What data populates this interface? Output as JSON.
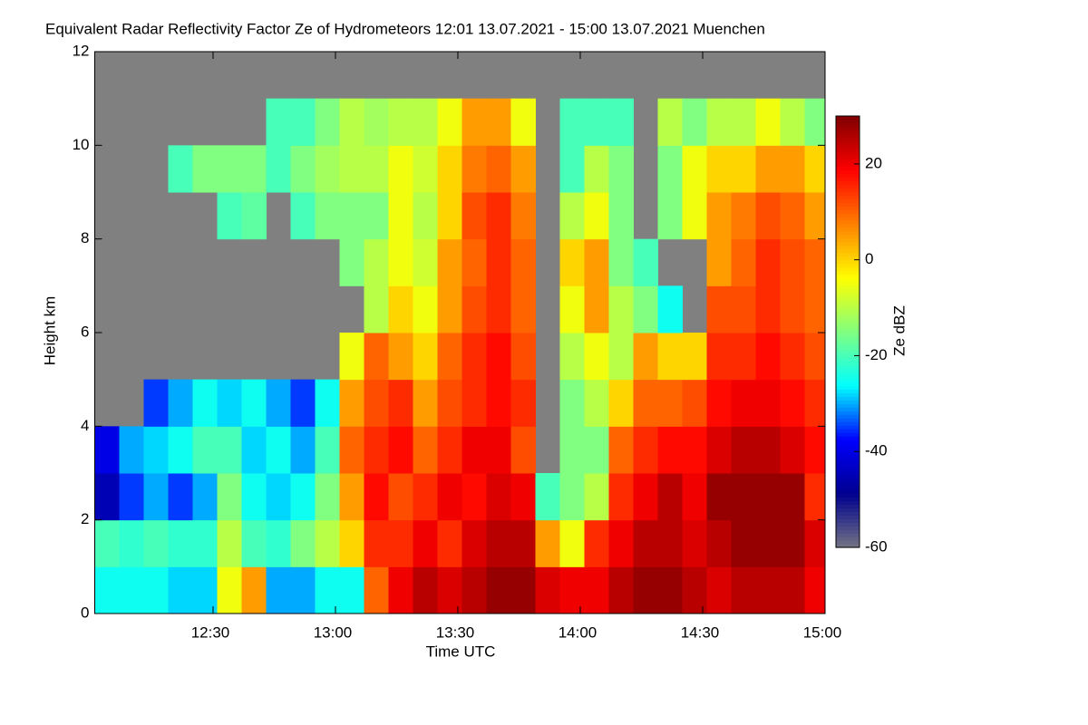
{
  "chart_data": {
    "type": "heatmap",
    "title": "Equivalent Radar Reflectivity Factor Ze of Hydrometeors   12:01 13.07.2021 - 15:00 13.07.2021 Muenchen",
    "x_label": "Time UTC",
    "y_label": "Height km",
    "colorbar_label": "Ze dBZ",
    "xlim": [
      721,
      900
    ],
    "xticks": [
      {
        "value": 750,
        "label": "12:30"
      },
      {
        "value": 780,
        "label": "13:00"
      },
      {
        "value": 810,
        "label": "13:30"
      },
      {
        "value": 840,
        "label": "14:00"
      },
      {
        "value": 870,
        "label": "14:30"
      },
      {
        "value": 900,
        "label": "15:00"
      }
    ],
    "ylim": [
      0,
      12
    ],
    "yticks": [
      0,
      2,
      4,
      6,
      8,
      10,
      12
    ],
    "zlim": [
      -60,
      30
    ],
    "zticks": [
      -60,
      -40,
      -20,
      0,
      20
    ],
    "colormap": [
      "#747484",
      "#00008f",
      "#0000ff",
      "#00ffff",
      "#80ff80",
      "#ffff00",
      "#ff8000",
      "#ff0000",
      "#800000"
    ],
    "missing_color": "#808080",
    "x": [
      724,
      730,
      736,
      742,
      748,
      754,
      760,
      766,
      772,
      778,
      784,
      790,
      796,
      802,
      808,
      814,
      820,
      826,
      832,
      838,
      844,
      850,
      856,
      862,
      868,
      874,
      880,
      886,
      892,
      898
    ],
    "y": [
      0.5,
      1.5,
      2.5,
      3.5,
      4.5,
      5.5,
      6.5,
      7.5,
      8.5,
      9.5,
      10.5,
      11.5
    ],
    "z": [
      [
        -25,
        -20,
        -45,
        -40,
        null,
        null,
        null,
        null,
        null,
        null,
        null,
        null
      ],
      [
        -25,
        -22,
        -35,
        -30,
        null,
        null,
        null,
        null,
        null,
        null,
        null,
        null
      ],
      [
        -25,
        -20,
        -30,
        -28,
        -35,
        null,
        null,
        null,
        null,
        null,
        null,
        null
      ],
      [
        -28,
        -22,
        -35,
        -25,
        -30,
        null,
        null,
        null,
        null,
        -20,
        null,
        null
      ],
      [
        -28,
        -22,
        -30,
        -20,
        -25,
        null,
        null,
        null,
        null,
        -15,
        null,
        null
      ],
      [
        -5,
        -10,
        -15,
        -20,
        -28,
        null,
        null,
        null,
        -20,
        -15,
        null,
        null
      ],
      [
        5,
        -20,
        -25,
        -28,
        -25,
        null,
        null,
        null,
        -18,
        -15,
        null,
        null
      ],
      [
        -30,
        -22,
        -28,
        -25,
        -30,
        null,
        null,
        null,
        null,
        -20,
        -20,
        null
      ],
      [
        -30,
        -15,
        -25,
        -30,
        -35,
        null,
        null,
        null,
        -20,
        -15,
        -20,
        null
      ],
      [
        -25,
        -10,
        -15,
        -20,
        -25,
        null,
        null,
        null,
        -15,
        -12,
        -15,
        null
      ],
      [
        -25,
        0,
        5,
        10,
        5,
        -5,
        null,
        -15,
        -15,
        -10,
        -10,
        null
      ],
      [
        10,
        15,
        18,
        15,
        12,
        10,
        -10,
        -10,
        -15,
        -10,
        -12,
        null
      ],
      [
        20,
        15,
        12,
        18,
        15,
        5,
        0,
        -5,
        -5,
        -5,
        -10,
        null
      ],
      [
        25,
        20,
        15,
        10,
        5,
        0,
        -5,
        -8,
        -10,
        -8,
        -10,
        null
      ],
      [
        22,
        15,
        20,
        15,
        12,
        10,
        5,
        5,
        0,
        0,
        -5,
        null
      ],
      [
        25,
        22,
        18,
        20,
        15,
        15,
        12,
        10,
        12,
        8,
        5,
        null
      ],
      [
        28,
        25,
        22,
        20,
        18,
        18,
        15,
        15,
        15,
        10,
        5,
        null
      ],
      [
        28,
        25,
        20,
        12,
        15,
        12,
        10,
        10,
        8,
        5,
        -5,
        null
      ],
      [
        22,
        5,
        -20,
        null,
        null,
        null,
        null,
        null,
        null,
        null,
        null,
        null
      ],
      [
        20,
        -5,
        -15,
        -15,
        -15,
        -10,
        -5,
        0,
        -10,
        -20,
        -20,
        null
      ],
      [
        20,
        15,
        -10,
        -15,
        -10,
        -5,
        5,
        5,
        -5,
        -10,
        -20,
        null
      ],
      [
        25,
        20,
        15,
        10,
        0,
        -10,
        -10,
        -15,
        -15,
        -15,
        -20,
        null
      ],
      [
        28,
        25,
        20,
        15,
        10,
        5,
        -15,
        -20,
        null,
        null,
        null,
        null
      ],
      [
        28,
        25,
        25,
        18,
        10,
        0,
        -25,
        null,
        -15,
        -15,
        -10,
        null
      ],
      [
        25,
        22,
        20,
        18,
        12,
        0,
        null,
        null,
        -5,
        -5,
        -15,
        null
      ],
      [
        22,
        25,
        28,
        22,
        18,
        15,
        12,
        5,
        5,
        0,
        -10,
        null
      ],
      [
        25,
        28,
        28,
        25,
        20,
        15,
        12,
        10,
        8,
        0,
        -10,
        null
      ],
      [
        25,
        28,
        28,
        25,
        20,
        18,
        15,
        15,
        12,
        5,
        -5,
        null
      ],
      [
        25,
        28,
        28,
        22,
        18,
        15,
        12,
        12,
        10,
        5,
        -10,
        null
      ],
      [
        20,
        22,
        15,
        18,
        15,
        12,
        10,
        10,
        5,
        0,
        -15,
        null
      ]
    ]
  }
}
